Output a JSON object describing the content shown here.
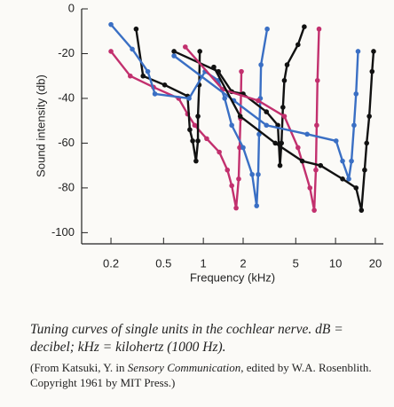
{
  "chart_data": {
    "type": "line",
    "x_label": "Frequency (kHz)",
    "y_label": "Sound intensity (db)",
    "xscale": "log",
    "xlim": [
      0.12,
      23
    ],
    "ylim": [
      -105,
      0
    ],
    "xticks": [
      0.2,
      0.5,
      1,
      2,
      5,
      10,
      20
    ],
    "yticks": [
      0,
      -20,
      -40,
      -60,
      -80,
      -100
    ],
    "series": [
      {
        "color": "#c2306e",
        "x": [
          0.2,
          0.28,
          0.42,
          0.65,
          0.76,
          0.86,
          1.06,
          1.32,
          1.52,
          1.64,
          1.77,
          1.85,
          1.88,
          1.91,
          1.94
        ],
        "values": [
          -19,
          -30,
          -35,
          -40,
          -47,
          -52,
          -58,
          -64,
          -72,
          -79,
          -89,
          -76,
          -62,
          -49,
          -28
        ]
      },
      {
        "color": "#111111",
        "x": [
          0.31,
          0.35,
          0.51,
          0.76,
          0.79,
          0.83,
          0.88,
          0.91,
          0.91,
          0.93,
          0.94
        ],
        "values": [
          -9,
          -30,
          -34,
          -39,
          -54,
          -59,
          -68,
          -59,
          -48,
          -34,
          -19
        ]
      },
      {
        "color": "#3a6fc4",
        "x": [
          0.2,
          0.29,
          0.38,
          0.43,
          0.78,
          1.03,
          1.3,
          1.45,
          1.64,
          2,
          2.34,
          2.53,
          2.6,
          2.64,
          2.7,
          2.73,
          3.04
        ],
        "values": [
          -7,
          -18,
          -28,
          -38,
          -40,
          -28,
          -32,
          -40,
          -52,
          -62,
          -74,
          -88,
          -74,
          -56,
          -40,
          -25,
          -9
        ]
      },
      {
        "color": "#111111",
        "x": [
          0.6,
          1.3,
          1.64,
          2,
          3,
          3.66,
          3.8,
          3.9,
          4,
          4.1,
          4.3,
          5.2,
          5.8
        ],
        "values": [
          -19,
          -28,
          -37,
          -38,
          -46,
          -52,
          -70,
          -60,
          -44,
          -32,
          -25,
          -16,
          -8
        ]
      },
      {
        "color": "#c2306e",
        "x": [
          0.73,
          1.4,
          2.6,
          4.1,
          5.2,
          6.4,
          6.9,
          7.1,
          7.2,
          7.3,
          7.5
        ],
        "values": [
          -17,
          -36,
          -41,
          -48,
          -62,
          -80,
          -90,
          -72,
          -52,
          -32,
          -9
        ]
      },
      {
        "color": "#3a6fc4",
        "x": [
          0.6,
          1.7,
          3,
          6.1,
          10.1,
          11.3,
          12.6,
          13.2,
          13.8,
          14.3,
          14.8
        ],
        "values": [
          -21,
          -41,
          -52,
          -56,
          -59,
          -68,
          -76,
          -68,
          -52,
          -38,
          -19
        ]
      },
      {
        "color": "#111111",
        "x": [
          1.2,
          1.9,
          3.5,
          5.6,
          7.7,
          11.3,
          14.3,
          15.7,
          16.6,
          17.2,
          18,
          18.9,
          19.4
        ],
        "values": [
          -26,
          -48,
          -60,
          -68,
          -70,
          -76,
          -80,
          -90,
          -72,
          -60,
          -48,
          -28,
          -19
        ]
      }
    ]
  },
  "caption": {
    "text": "Tuning curves of single units in the cochlear nerve. dB = decibel; kHz = kilohertz (1000 Hz).",
    "source": [
      "(From Katsuki, Y. in ",
      "Sensory Communication",
      ", edited by W.A. Rosenblith. Copyright 1961 by MIT Press.)"
    ]
  }
}
